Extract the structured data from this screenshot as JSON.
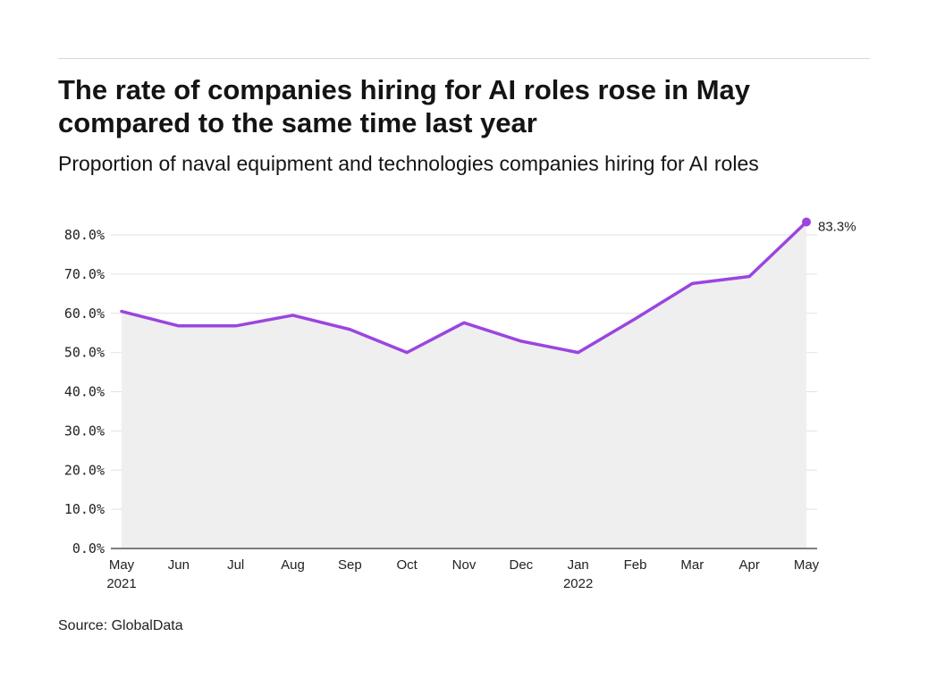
{
  "title": "The rate of companies hiring for AI roles rose in May compared to the same time last year",
  "subtitle": "Proportion of naval equipment and technologies companies hiring for AI roles",
  "source": "Source: GlobalData",
  "colors": {
    "line": "#9b45e0",
    "area": "#efefef",
    "grid": "#e2e2e2",
    "axis": "#333333"
  },
  "chart_data": {
    "type": "area",
    "categories": [
      "May 2021",
      "Jun 2021",
      "Jul 2021",
      "Aug 2021",
      "Sep 2021",
      "Oct 2021",
      "Nov 2021",
      "Dec 2021",
      "Jan 2022",
      "Feb 2022",
      "Mar 2022",
      "Apr 2022",
      "May 2022"
    ],
    "x_tick_labels": [
      [
        "May",
        "2021"
      ],
      [
        "Jun"
      ],
      [
        "Jul"
      ],
      [
        "Aug"
      ],
      [
        "Sep"
      ],
      [
        "Oct"
      ],
      [
        "Nov"
      ],
      [
        "Dec"
      ],
      [
        "Jan",
        "2022"
      ],
      [
        "Feb"
      ],
      [
        "Mar"
      ],
      [
        "Apr"
      ],
      [
        "May"
      ]
    ],
    "series": [
      {
        "values": [
          60.5,
          56.8,
          56.8,
          59.5,
          55.9,
          50.0,
          57.6,
          52.9,
          50.0,
          58.6,
          67.6,
          69.4,
          83.3
        ]
      }
    ],
    "end_label": "83.3%",
    "y_ticks": [
      "0.0%",
      "10.0%",
      "20.0%",
      "30.0%",
      "40.0%",
      "50.0%",
      "60.0%",
      "70.0%",
      "80.0%"
    ],
    "ylim": [
      0,
      80
    ],
    "grid": true,
    "xlabel": "",
    "ylabel": ""
  }
}
